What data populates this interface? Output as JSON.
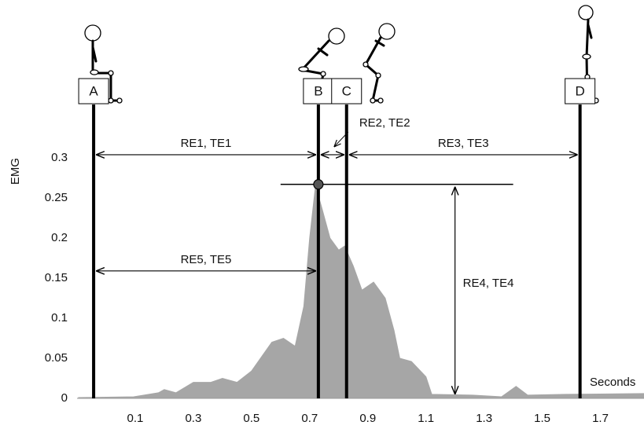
{
  "chart_data": {
    "type": "area",
    "y_label": "EMG",
    "x_label": "Seconds",
    "color": "#a6a6a6",
    "x": [
      -0.095,
      0.095,
      0.18,
      0.2,
      0.24,
      0.3,
      0.36,
      0.4,
      0.45,
      0.5,
      0.57,
      0.61,
      0.65,
      0.68,
      0.7,
      0.72,
      0.74,
      0.77,
      0.8,
      0.82,
      0.85,
      0.88,
      0.92,
      0.96,
      0.99,
      1.01,
      1.05,
      1.1,
      1.12,
      1.26,
      1.36,
      1.41,
      1.45,
      1.58,
      1.85
    ],
    "values": [
      0.001,
      0.002,
      0.007,
      0.011,
      0.007,
      0.02,
      0.02,
      0.025,
      0.02,
      0.034,
      0.07,
      0.075,
      0.065,
      0.115,
      0.2,
      0.265,
      0.24,
      0.2,
      0.185,
      0.19,
      0.165,
      0.135,
      0.145,
      0.125,
      0.085,
      0.05,
      0.046,
      0.027,
      0.005,
      0.004,
      0.002,
      0.015,
      0.004,
      0.005,
      0.006
    ],
    "xlim": [
      -0.1,
      1.85
    ],
    "ylim": [
      0,
      0.3
    ],
    "xticks": [
      0.1,
      0.3,
      0.5,
      0.7,
      0.9,
      1.1,
      1.3,
      1.5,
      1.7
    ],
    "yticks": [
      0,
      0.05,
      0.1,
      0.15,
      0.2,
      0.25,
      0.3
    ],
    "grid": false,
    "events": [
      {
        "label": "A",
        "x": -0.043
      },
      {
        "label": "B",
        "x": 0.73
      },
      {
        "label": "C",
        "x": 0.827
      },
      {
        "label": "D",
        "x": 1.63
      }
    ],
    "intervals": [
      {
        "label": "RE1, TE1",
        "from": 0,
        "to": 1,
        "y": 0.304
      },
      {
        "label": "RE2, TE2",
        "from": 1,
        "to": 2,
        "y": 0.304
      },
      {
        "label": "RE3, TE3",
        "from": 2,
        "to": 3,
        "y": 0.304
      },
      {
        "label": "RE5, TE5",
        "from": 0,
        "to": 1,
        "y": 0.159
      }
    ],
    "peak": {
      "x": 0.73,
      "y": 0.267,
      "line": [
        0.6,
        1.4
      ]
    },
    "amplitude": {
      "label": "RE4, TE4",
      "x": 1.2
    }
  }
}
